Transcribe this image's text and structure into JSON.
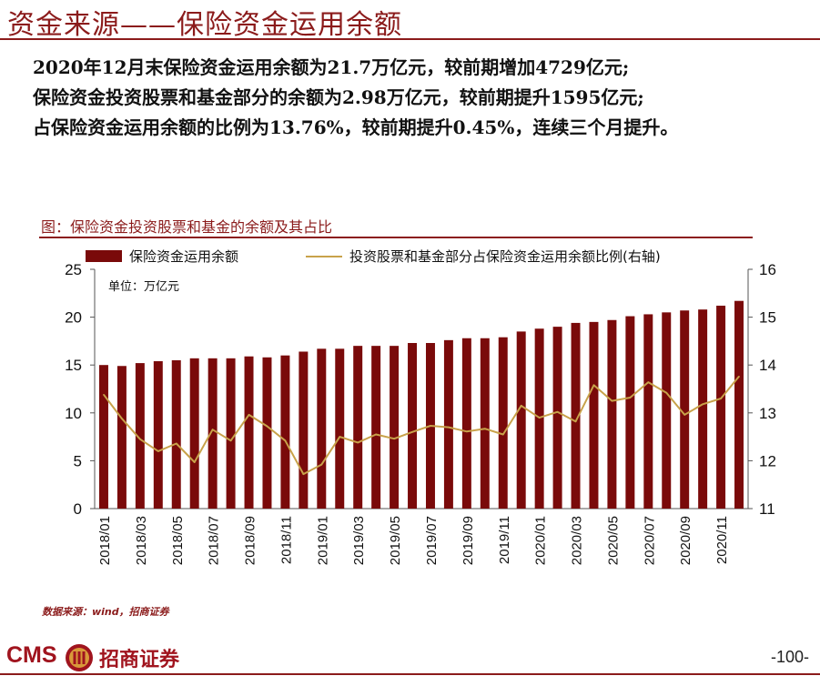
{
  "header": {
    "title": "资金来源——保险资金运用余额"
  },
  "summary": [
    "2020年12月末保险资金运用余额为21.7万亿元，较前期增加4729亿元;",
    "保险资金投资股票和基金部分的余额为2.98万亿元，较前期提升1595亿元;",
    "占保险资金运用余额的比例为13.76%，较前期提升0.45%，连续三个月提升。"
  ],
  "figure": {
    "caption": "图：保险资金投资股票和基金的余额及其占比",
    "source": "数据来源：wind，招商证券"
  },
  "chart_data": {
    "type": "bar",
    "unit_note": "单位：万亿元",
    "categories": [
      "2018/01",
      "2018/02",
      "2018/03",
      "2018/04",
      "2018/05",
      "2018/06",
      "2018/07",
      "2018/08",
      "2018/09",
      "2018/10",
      "2018/11",
      "2018/12",
      "2019/01",
      "2019/02",
      "2019/03",
      "2019/04",
      "2019/05",
      "2019/06",
      "2019/07",
      "2019/08",
      "2019/09",
      "2019/10",
      "2019/11",
      "2019/12",
      "2020/01",
      "2020/02",
      "2020/03",
      "2020/04",
      "2020/05",
      "2020/06",
      "2020/07",
      "2020/08",
      "2020/09",
      "2020/10",
      "2020/11",
      "2020/12"
    ],
    "x_tick_labels": [
      "2018/01",
      "2018/03",
      "2018/05",
      "2018/07",
      "2018/09",
      "2018/11",
      "2019/01",
      "2019/03",
      "2019/05",
      "2019/07",
      "2019/09",
      "2019/11",
      "2020/01",
      "2020/03",
      "2020/05",
      "2020/07",
      "2020/09",
      "2020/11"
    ],
    "series": [
      {
        "name": "保险资金运用余额",
        "kind": "bar",
        "axis": "left",
        "color": "#7a0a0a",
        "values": [
          15.0,
          14.9,
          15.2,
          15.4,
          15.5,
          15.7,
          15.7,
          15.7,
          15.9,
          15.8,
          16.0,
          16.4,
          16.7,
          16.7,
          17.0,
          17.0,
          17.0,
          17.3,
          17.3,
          17.6,
          17.8,
          17.8,
          17.9,
          18.5,
          18.8,
          19.0,
          19.4,
          19.5,
          19.7,
          20.1,
          20.3,
          20.5,
          20.7,
          20.8,
          21.2,
          21.7
        ]
      },
      {
        "name": "投资股票和基金部分占保险资金运用余额比例(右轴)",
        "kind": "line",
        "axis": "right",
        "color": "#c8a24a",
        "values": [
          13.38,
          12.88,
          12.45,
          12.2,
          12.36,
          11.97,
          12.65,
          12.42,
          12.96,
          12.72,
          12.42,
          11.72,
          11.92,
          12.5,
          12.38,
          12.55,
          12.46,
          12.6,
          12.73,
          12.7,
          12.61,
          12.67,
          12.55,
          13.15,
          12.9,
          13.02,
          12.82,
          13.58,
          13.25,
          13.32,
          13.64,
          13.42,
          12.96,
          13.18,
          13.3,
          13.76
        ]
      }
    ],
    "y_left": {
      "min": 0,
      "max": 25,
      "ticks": [
        0,
        5,
        10,
        15,
        20,
        25
      ]
    },
    "y_right": {
      "min": 11,
      "max": 16,
      "ticks": [
        11,
        12,
        13,
        14,
        15,
        16
      ]
    },
    "legend_position": "top"
  },
  "footer": {
    "logo_latin": "CMS",
    "logo_cn": "招商证券",
    "page_number": "-100-",
    "logo_color": "#a0141e"
  }
}
